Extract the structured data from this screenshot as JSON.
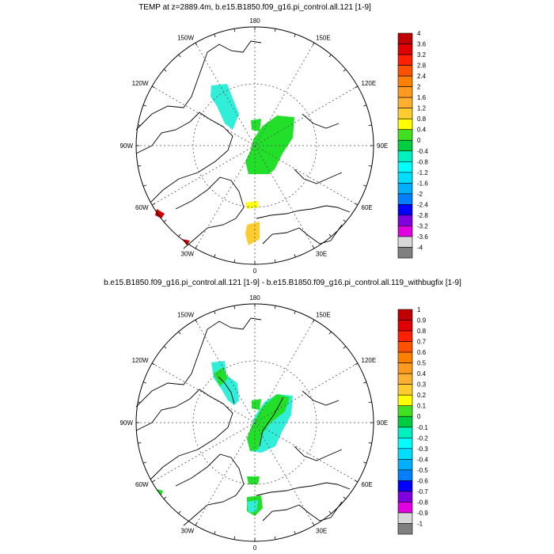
{
  "panels": [
    {
      "title": "TEMP at z=2889.4m, b.e15.B1850.f09_g16.pi_control.all.121 [1-9]",
      "lon_labels": {
        "top": "180",
        "bottom": "0",
        "left": "90W",
        "right": "90E",
        "ul1": "150W",
        "ur1": "150E",
        "ul2": "120W",
        "ur2": "120E",
        "ll1": "60W",
        "lr1": "60E",
        "ll2": "30W",
        "lr2": "30E"
      },
      "colorbar": {
        "labels": [
          "4",
          "3.6",
          "3.2",
          "2.8",
          "2.4",
          "2",
          "1.6",
          "1.2",
          "0.8",
          "0.4",
          "0",
          "-0.4",
          "-0.8",
          "-1.2",
          "-1.6",
          "-2",
          "-2.4",
          "-2.8",
          "-3.2",
          "-3.6",
          "-4"
        ]
      }
    },
    {
      "title": "b.e15.B1850.f09_g16.pi_control.all.121 [1-9] - b.e15.B1850.f09_g16.pi_control.all.119_withbugfix [1-9]",
      "lon_labels": {
        "top": "180",
        "bottom": "0",
        "left": "90W",
        "right": "90E",
        "ul1": "150W",
        "ur1": "150E",
        "ul2": "120W",
        "ur2": "120E",
        "ll1": "60W",
        "lr1": "60E",
        "ll2": "30W",
        "lr2": "30E"
      },
      "colorbar": {
        "labels": [
          "1",
          "0.9",
          "0.8",
          "0.7",
          "0.6",
          "0.5",
          "0.4",
          "0.3",
          "0.2",
          "0.1",
          "0",
          "-0.1",
          "-0.2",
          "-0.3",
          "-0.4",
          "-0.5",
          "-0.6",
          "-0.7",
          "-0.8",
          "-0.9",
          "-1"
        ]
      }
    }
  ],
  "palette": [
    "#c00000",
    "#e00000",
    "#ff2000",
    "#ff5000",
    "#ff8000",
    "#ff9a20",
    "#ffb030",
    "#ffcc30",
    "#ffff00",
    "#40e020",
    "#00cc40",
    "#00f0c0",
    "#00ffff",
    "#00ddff",
    "#00b0ff",
    "#0080ff",
    "#0000ff",
    "#8000e0",
    "#e000e0",
    "#d8d8d8",
    "#808080"
  ],
  "field_colors": {
    "cyan": "#30eed8",
    "green": "#22e02a",
    "yellow": "#ffff10",
    "gold": "#ffcc30",
    "red": "#d00000"
  }
}
